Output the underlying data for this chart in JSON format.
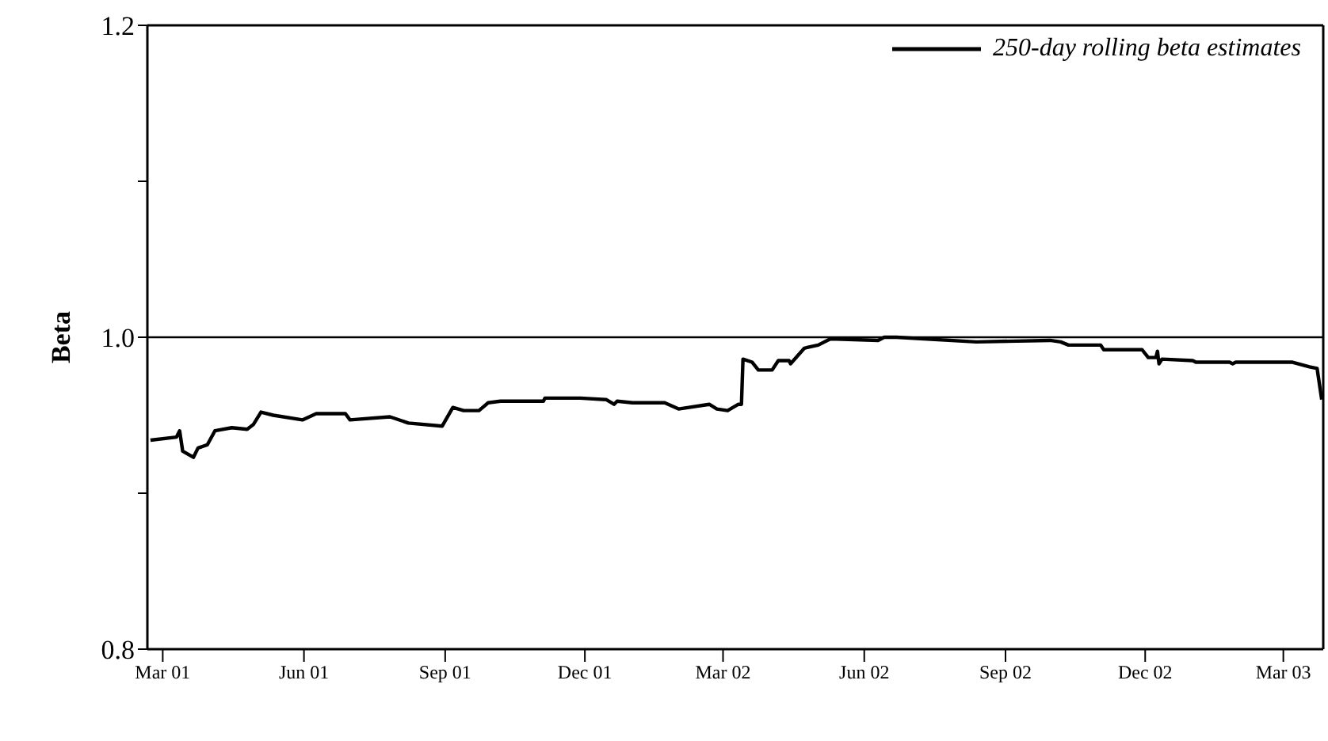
{
  "chart_data": {
    "type": "line",
    "ylabel": "Beta",
    "xlim": [
      "2001-02-19",
      "2003-03-27"
    ],
    "ylim": [
      0.8,
      1.2
    ],
    "yticks": [
      0.8,
      {
        "value": 0.9,
        "label": null
      },
      {
        "value": 1.0,
        "label": "1.0"
      },
      {
        "value": 1.1,
        "label": null
      },
      1.2
    ],
    "xticks": [
      {
        "value": "2001-03-01",
        "label": "Mar 01"
      },
      {
        "value": "2001-06-01",
        "label": "Jun 01"
      },
      {
        "value": "2001-09-01",
        "label": "Sep 01"
      },
      {
        "value": "2001-12-01",
        "label": "Dec 01"
      },
      {
        "value": "2002-03-01",
        "label": "Mar 02"
      },
      {
        "value": "2002-06-01",
        "label": "Jun 02"
      },
      {
        "value": "2002-09-01",
        "label": "Sep 02"
      },
      {
        "value": "2002-12-01",
        "label": "Dec 02"
      },
      {
        "value": "2003-03-01",
        "label": "Mar 03"
      }
    ],
    "legend": "top right",
    "marker": "none",
    "line_style": "solid",
    "ref_lines": [
      {
        "axis": "y",
        "value": 1.0,
        "color": "#000000"
      }
    ],
    "x": [
      "2001-02-21",
      "2001-03-10",
      "2001-03-12",
      "2001-03-14",
      "2001-03-21",
      "2001-03-24",
      "2001-03-30",
      "2001-04-04",
      "2001-04-15",
      "2001-04-25",
      "2001-04-29",
      "2001-05-04",
      "2001-05-12",
      "2001-05-31",
      "2001-06-09",
      "2001-06-28",
      "2001-07-01",
      "2001-07-27",
      "2001-08-08",
      "2001-08-30",
      "2001-09-06",
      "2001-09-13",
      "2001-09-23",
      "2001-09-29",
      "2001-10-07",
      "2001-11-04",
      "2001-11-05",
      "2001-11-28",
      "2001-12-15",
      "2001-12-20",
      "2001-12-22",
      "2002-01-01",
      "2002-01-22",
      "2002-01-31",
      "2002-02-20",
      "2002-02-25",
      "2002-03-04",
      "2002-03-11",
      "2002-03-13",
      "2002-03-14",
      "2002-03-20",
      "2002-03-24",
      "2002-04-02",
      "2002-04-06",
      "2002-04-13",
      "2002-04-14",
      "2002-04-23",
      "2002-05-02",
      "2002-05-10",
      "2002-06-10",
      "2002-06-14",
      "2002-06-22",
      "2002-08-13",
      "2002-09-30",
      "2002-10-07",
      "2002-10-12",
      "2002-11-02",
      "2002-11-04",
      "2002-11-29",
      "2002-12-03",
      "2002-12-08",
      "2002-12-09",
      "2002-12-10",
      "2002-12-12",
      "2003-01-01",
      "2003-01-03",
      "2003-01-25",
      "2003-01-27",
      "2003-01-29",
      "2003-03-07",
      "2003-03-18",
      "2003-03-23",
      "2003-03-26"
    ],
    "series": [
      {
        "name": "250-day rolling beta estimates",
        "color": "#000000",
        "values": [
          0.934,
          0.936,
          0.94,
          0.927,
          0.923,
          0.929,
          0.931,
          0.94,
          0.942,
          0.941,
          0.944,
          0.952,
          0.95,
          0.947,
          0.951,
          0.951,
          0.947,
          0.949,
          0.945,
          0.943,
          0.955,
          0.953,
          0.953,
          0.958,
          0.959,
          0.959,
          0.961,
          0.961,
          0.96,
          0.957,
          0.959,
          0.958,
          0.958,
          0.954,
          0.957,
          0.954,
          0.953,
          0.957,
          0.957,
          0.986,
          0.984,
          0.979,
          0.979,
          0.985,
          0.985,
          0.983,
          0.993,
          0.995,
          0.999,
          0.998,
          1.0,
          1.0,
          0.997,
          0.998,
          0.997,
          0.995,
          0.995,
          0.992,
          0.992,
          0.987,
          0.987,
          0.991,
          0.983,
          0.986,
          0.985,
          0.984,
          0.984,
          0.983,
          0.984,
          0.984,
          0.981,
          0.98,
          0.96
        ]
      }
    ]
  }
}
